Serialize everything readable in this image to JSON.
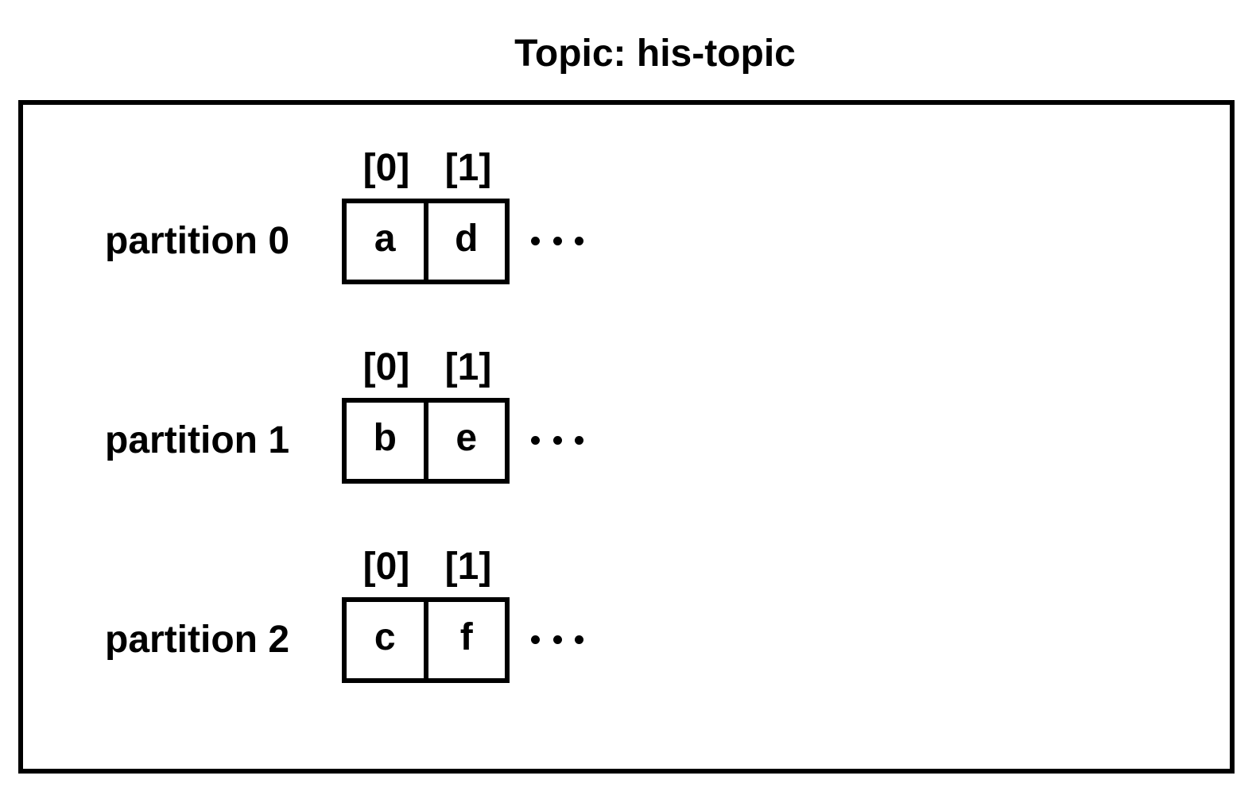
{
  "title": "Topic: his-topic",
  "partitions": [
    {
      "label": "partition 0",
      "offsets": [
        "[0]",
        "[1]"
      ],
      "messages": [
        "a",
        "d"
      ],
      "ellipsis": "..."
    },
    {
      "label": "partition 1",
      "offsets": [
        "[0]",
        "[1]"
      ],
      "messages": [
        "b",
        "e"
      ],
      "ellipsis": "..."
    },
    {
      "label": "partition 2",
      "offsets": [
        "[0]",
        "[1]"
      ],
      "messages": [
        "c",
        "f"
      ],
      "ellipsis": "..."
    }
  ]
}
